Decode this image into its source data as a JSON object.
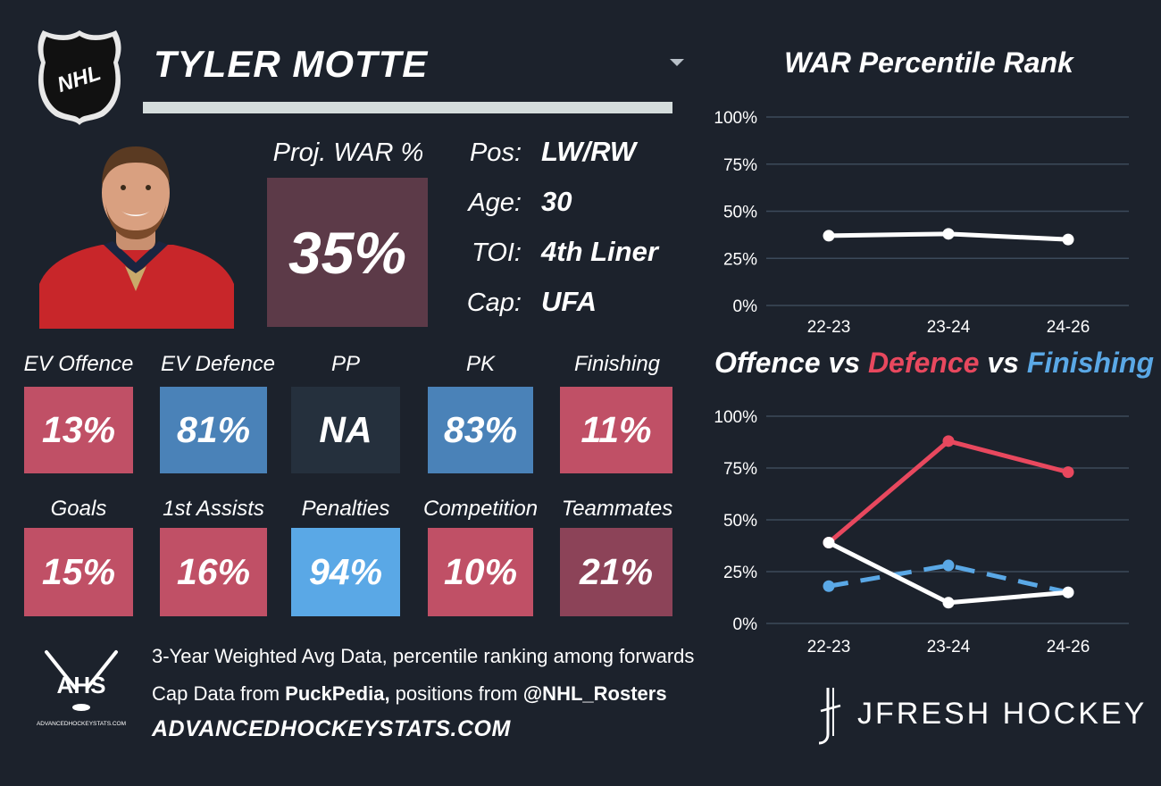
{
  "player": {
    "name": "TYLER MOTTE"
  },
  "logo": {
    "text": "NHL",
    "icon": "nhl-shield-icon"
  },
  "projected_war": {
    "label": "Proj. WAR %",
    "value": "35%",
    "color": "#5c3a48"
  },
  "info": [
    {
      "key": "Pos:",
      "value": "LW/RW"
    },
    {
      "key": "Age:",
      "value": "30"
    },
    {
      "key": "TOI:",
      "value": "4th Liner"
    },
    {
      "key": "Cap:",
      "value": "UFA"
    }
  ],
  "stats_row1": [
    {
      "label": "EV Offence",
      "value": "13%",
      "color": "#c05066"
    },
    {
      "label": "EV Defence",
      "value": "81%",
      "color": "#4a82b8"
    },
    {
      "label": "PP",
      "value": "NA",
      "color": "#25303d"
    },
    {
      "label": "PK",
      "value": "83%",
      "color": "#4a82b8"
    },
    {
      "label": "Finishing",
      "value": "11%",
      "color": "#c05066"
    }
  ],
  "stats_row2": [
    {
      "label": "Goals",
      "value": "15%",
      "color": "#c05066"
    },
    {
      "label": "1st Assists",
      "value": "16%",
      "color": "#c05066"
    },
    {
      "label": "Penalties",
      "value": "94%",
      "color": "#5aa8e6"
    },
    {
      "label": "Competition",
      "value": "10%",
      "color": "#c05066"
    },
    {
      "label": "Teammates",
      "value": "21%",
      "color": "#8c4358"
    }
  ],
  "footer": {
    "line1": "3-Year Weighted Avg Data, percentile ranking among forwards",
    "line2_prefix": "Cap Data from ",
    "line2_source1": "PuckPedia,",
    "line2_mid": " positions from ",
    "line2_source2": "@NHL_Rosters",
    "site": "ADVANCEDHOCKEYSTATS.COM",
    "ahs_logo": "AHS",
    "ahs_small": "ADVANCEDHOCKEYSTATS.COM",
    "brand": "JFRESH HOCKEY"
  },
  "chart_data": [
    {
      "type": "line",
      "title": "WAR Percentile Rank",
      "categories": [
        "22-23",
        "23-24",
        "24-26"
      ],
      "ylim": [
        0,
        100
      ],
      "yticks": [
        "0%",
        "25%",
        "50%",
        "75%",
        "100%"
      ],
      "grid": true,
      "series": [
        {
          "values": [
            37,
            38,
            35
          ],
          "color": "#ffffff",
          "dashed": false
        }
      ]
    },
    {
      "type": "line",
      "title_parts": [
        {
          "text": "Offence",
          "color": "#ffffff"
        },
        {
          "text": " vs ",
          "color": "#ffffff"
        },
        {
          "text": "Defence",
          "color": "#e8485e"
        },
        {
          "text": " vs ",
          "color": "#ffffff"
        },
        {
          "text": "Finishing",
          "color": "#5aa8e6"
        }
      ],
      "categories": [
        "22-23",
        "23-24",
        "24-26"
      ],
      "ylim": [
        0,
        100
      ],
      "yticks": [
        "0%",
        "25%",
        "50%",
        "75%",
        "100%"
      ],
      "grid": true,
      "series": [
        {
          "name": "Finishing",
          "values": [
            18,
            28,
            15
          ],
          "color": "#5aa8e6",
          "dashed": true
        },
        {
          "name": "Defence",
          "values": [
            39,
            88,
            73
          ],
          "color": "#e8485e",
          "dashed": false
        },
        {
          "name": "Offence",
          "values": [
            39,
            10,
            15
          ],
          "color": "#ffffff",
          "dashed": false
        }
      ]
    }
  ]
}
